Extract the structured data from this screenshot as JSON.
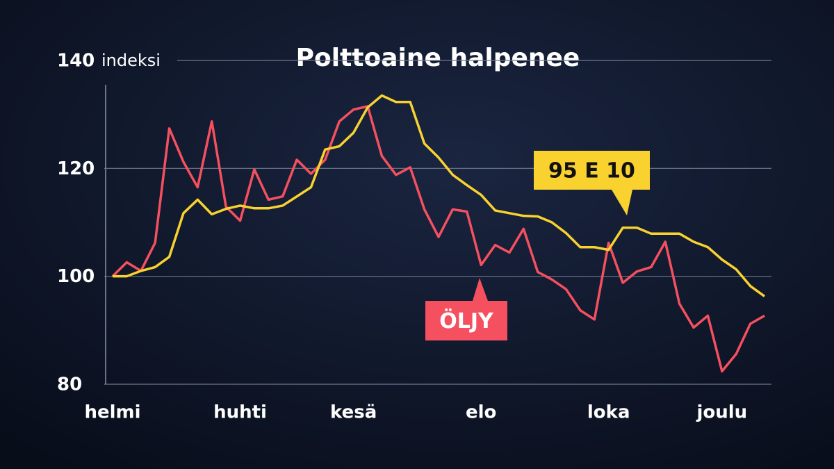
{
  "chart_data": {
    "type": "line",
    "title": "Polttoaine halpenee",
    "y_label": "indeksi",
    "categories": [
      "helmi",
      null,
      null,
      null,
      null,
      null,
      null,
      null,
      null,
      "huhti",
      null,
      null,
      null,
      null,
      null,
      null,
      null,
      "kesä",
      null,
      null,
      null,
      null,
      null,
      null,
      null,
      null,
      "elo",
      null,
      null,
      null,
      null,
      null,
      null,
      null,
      null,
      "loka",
      null,
      null,
      null,
      null,
      null,
      null,
      null,
      "joulu",
      null,
      null,
      null
    ],
    "series": [
      {
        "name": "95 E 10",
        "color": "#f9d230",
        "values": [
          100,
          100,
          101,
          101.7,
          103.6,
          111.7,
          114.2,
          111.5,
          112.5,
          113.1,
          112.6,
          112.6,
          113.1,
          114.8,
          116.5,
          123.5,
          124.1,
          126.6,
          131.3,
          133.5,
          132.3,
          132.3,
          124.6,
          122,
          118.8,
          116.9,
          115.1,
          112.2,
          111.7,
          111.2,
          111.1,
          110,
          108,
          105.4,
          105.4,
          104.9,
          109,
          109,
          107.9,
          107.9,
          107.9,
          106.4,
          105.4,
          103.1,
          101.3,
          98.2,
          96.3
        ]
      },
      {
        "name": "ÖLJY",
        "color": "#f5505f",
        "values": [
          100,
          102.6,
          101,
          106.2,
          127.4,
          121.2,
          116.5,
          128.7,
          112.9,
          110.3,
          119.8,
          114.2,
          114.8,
          121.6,
          119,
          121.6,
          128.7,
          130.9,
          131.5,
          122.3,
          118.8,
          120.2,
          112.4,
          107.3,
          112.4,
          112,
          102.1,
          105.8,
          104.4,
          108.8,
          100.8,
          99.4,
          97.6,
          93.7,
          92,
          106.2,
          98.8,
          100.9,
          101.7,
          106.4,
          94.9,
          90.5,
          92.7,
          82.4,
          85.6,
          91.2,
          92.7
        ]
      }
    ],
    "ylim": [
      80,
      140
    ],
    "yticks": [
      80,
      100,
      120,
      140
    ],
    "grid": true
  }
}
